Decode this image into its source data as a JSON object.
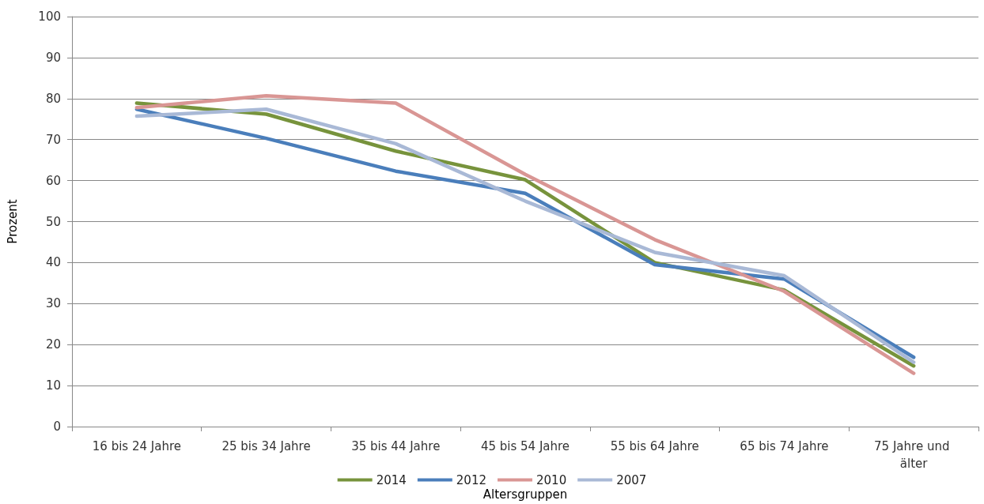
{
  "chart_data": {
    "type": "line",
    "xlabel": "Altersgruppen",
    "ylabel": "Prozent",
    "categories": [
      "16 bis 24 Jahre",
      "25 bis 34 Jahre",
      "35 bis 44 Jahre",
      "45 bis 54 Jahre",
      "55 bis 64 Jahre",
      "65 bis 74 Jahre",
      "75 Jahre und älter"
    ],
    "series": [
      {
        "name": "2014",
        "color": "#77933c",
        "values": [
          78.9,
          76.2,
          67.2,
          60.2,
          40,
          33.3,
          14.8
        ]
      },
      {
        "name": "2012",
        "color": "#4a7ebb",
        "values": [
          77.4,
          70.3,
          62.3,
          56.9,
          39.5,
          36,
          16.9
        ]
      },
      {
        "name": "2010",
        "color": "#d99694",
        "values": [
          77.8,
          80.7,
          78.9,
          61.5,
          45.6,
          33,
          13
        ]
      },
      {
        "name": "2007",
        "color": "#a9b9d6",
        "values": [
          75.7,
          77.4,
          69,
          55,
          42.5,
          36.8,
          15.7
        ]
      }
    ],
    "ylim": [
      0,
      100
    ],
    "yticks": [
      0,
      10,
      20,
      30,
      40,
      50,
      60,
      70,
      80,
      90,
      100
    ],
    "grid": "y",
    "legend": "bottom",
    "marker": "none",
    "line_style": "solid"
  }
}
